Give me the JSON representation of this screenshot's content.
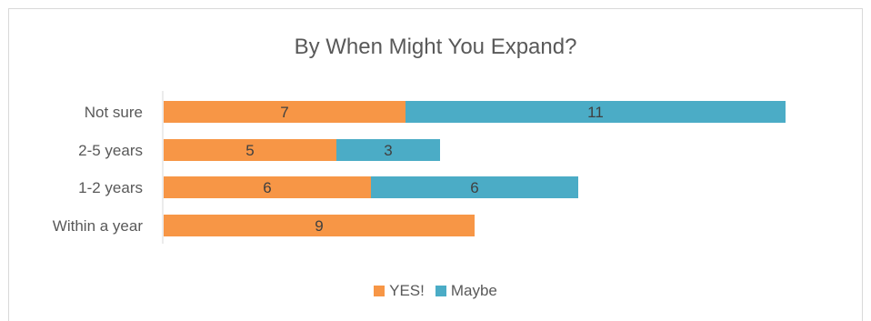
{
  "chart_data": {
    "type": "bar",
    "orientation": "horizontal",
    "stacked": true,
    "title": "By When Might You Expand?",
    "categories": [
      "Within a year",
      "1-2 years",
      "2-5 years",
      "Not sure"
    ],
    "series": [
      {
        "name": "YES!",
        "values": [
          9,
          6,
          5,
          7
        ],
        "color": "#F79646"
      },
      {
        "name": "Maybe",
        "values": [
          null,
          6,
          3,
          11
        ],
        "color": "#4BACC6"
      }
    ],
    "xlim": [
      0,
      18
    ],
    "grid": false,
    "legend_position": "bottom",
    "data_labels": true
  }
}
